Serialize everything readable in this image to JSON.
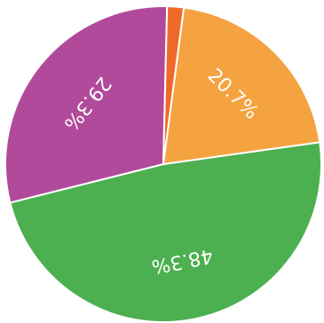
{
  "chart_data": {
    "type": "pie",
    "slices": [
      {
        "label": "48.3%",
        "value": 48.3,
        "color": "#4caf50"
      },
      {
        "label": "29.3%",
        "value": 29.3,
        "color": "#b14a9b"
      },
      {
        "label": "",
        "value": 1.7,
        "color": "#ef6a2a"
      },
      {
        "label": "20.7%",
        "value": 20.7,
        "color": "#f4a340"
      }
    ],
    "start_angle_deg": -8,
    "direction": "clockwise",
    "legend": "none",
    "title": ""
  }
}
